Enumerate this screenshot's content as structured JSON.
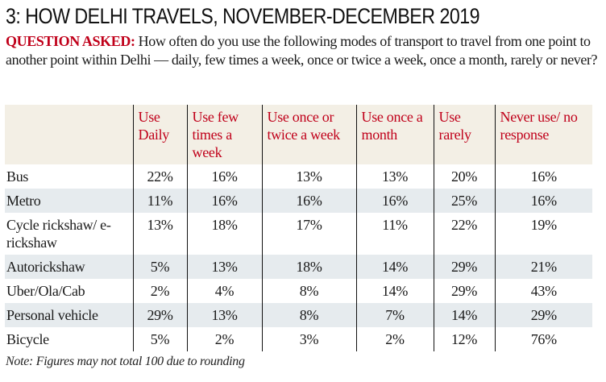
{
  "title": "3: HOW DELHI TRAVELS, NOVEMBER-DECEMBER 2019",
  "question": {
    "label": "QUESTION ASKED:",
    "text": "How often do you use the following modes of transport to travel from one point to another point within Delhi — daily, few times a week, once or twice a week, once a month, rarely or never?"
  },
  "colors": {
    "accent": "#c0001a",
    "header_bg": "#f3efe5",
    "alt_row_bg": "#e6ebee"
  },
  "table": {
    "columns": [
      "",
      "Use Daily",
      "Use few times a week",
      "Use once or twice a week",
      "Use once a month",
      "Use rarely",
      "Never use/ no response"
    ],
    "rows": [
      {
        "mode": "Bus",
        "values": [
          "22%",
          "16%",
          "13%",
          "13%",
          "20%",
          "16%"
        ]
      },
      {
        "mode": "Metro",
        "values": [
          "11%",
          "16%",
          "16%",
          "16%",
          "25%",
          "16%"
        ]
      },
      {
        "mode": "Cycle rickshaw/ e-rickshaw",
        "values": [
          "13%",
          "18%",
          "17%",
          "11%",
          "22%",
          "19%"
        ]
      },
      {
        "mode": "Autorickshaw",
        "values": [
          "5%",
          "13%",
          "18%",
          "14%",
          "29%",
          "21%"
        ]
      },
      {
        "mode": "Uber/Ola/Cab",
        "values": [
          "2%",
          "4%",
          "8%",
          "14%",
          "29%",
          "43%"
        ]
      },
      {
        "mode": "Personal vehicle",
        "values": [
          "29%",
          "13%",
          "8%",
          "7%",
          "14%",
          "29%"
        ]
      },
      {
        "mode": "Bicycle",
        "values": [
          "5%",
          "2%",
          "3%",
          "2%",
          "12%",
          "76%"
        ]
      }
    ]
  },
  "note": "Note: Figures may not total 100 due to rounding"
}
